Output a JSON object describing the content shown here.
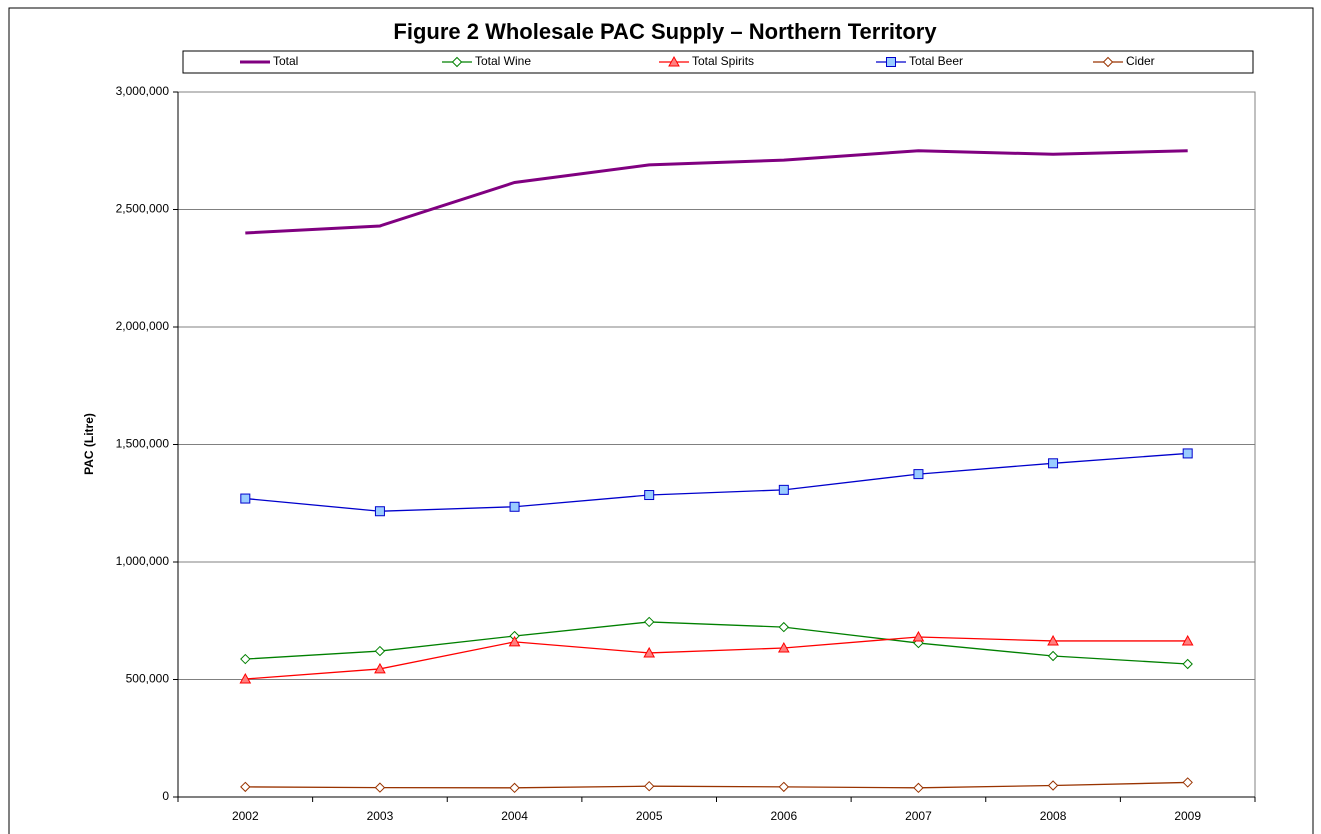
{
  "chart_data": {
    "type": "line",
    "title": "Figure 2 Wholesale PAC Supply – Northern Territory",
    "y_label": "PAC (Litre)",
    "categories": [
      "2002",
      "2003",
      "2004",
      "2005",
      "2006",
      "2007",
      "2008",
      "2009"
    ],
    "series": [
      {
        "name": "Total",
        "color": "#800080",
        "marker": "none",
        "values": [
          2400000,
          2430000,
          2615000,
          2690000,
          2710000,
          2750000,
          2735000,
          2750000
        ]
      },
      {
        "name": "Total Wine",
        "color": "#008000",
        "marker": "diamond",
        "marker_fill": "#ffffff",
        "values": [
          587000,
          621000,
          685000,
          745000,
          723000,
          655000,
          600000,
          566000
        ]
      },
      {
        "name": "Total Spirits",
        "color": "#ff0000",
        "marker": "triangle",
        "marker_fill": "#ff8080",
        "values": [
          502000,
          545000,
          660000,
          613000,
          634000,
          681000,
          664000,
          664000
        ]
      },
      {
        "name": "Total Beer",
        "color": "#0000cc",
        "marker": "square",
        "marker_fill": "#99ccff",
        "values": [
          1270000,
          1216000,
          1235000,
          1285000,
          1307000,
          1374000,
          1420000,
          1462000
        ]
      },
      {
        "name": "Cider",
        "color": "#993300",
        "marker": "diamond",
        "marker_fill": "#ffffff",
        "values": [
          43000,
          40000,
          39000,
          46000,
          43000,
          39000,
          49000,
          62000
        ]
      }
    ],
    "ylim": [
      0,
      3000000
    ],
    "yticks": [
      0,
      {
        "value": 500000,
        "label": "500,000"
      },
      {
        "value": 1000000,
        "label": "1,000,000"
      },
      {
        "value": 1500000,
        "label": "1,500,000"
      },
      {
        "value": 2000000,
        "label": "2,000,000"
      },
      {
        "value": 2500000,
        "label": "2,500,000"
      },
      {
        "value": 3000000,
        "label": "3,000,000"
      }
    ],
    "grid": true,
    "legend": "top"
  }
}
